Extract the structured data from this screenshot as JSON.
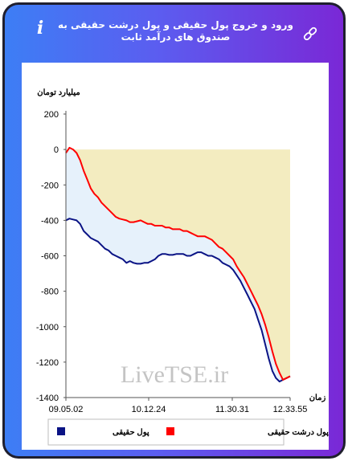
{
  "header": {
    "title": "ورود و خروج پول حقیقی و پول درشت حقیقی به صندوق های درآمد ثابت",
    "info_icon": "info-icon",
    "link_icon": "link-icon"
  },
  "watermark": "LiveTSE.ir",
  "chart_data": {
    "type": "line",
    "title": "",
    "ylabel": "میلیارد تومان",
    "xlabel": "زمان",
    "ylim": [
      -1400,
      200
    ],
    "yticks": [
      200,
      0,
      -200,
      -400,
      -600,
      -800,
      -1000,
      -1200,
      -1400
    ],
    "xtick_labels": [
      "09.05.02",
      "10.12.24",
      "11.30.31",
      "12.33.55"
    ],
    "legend_position": "bottom",
    "grid": false,
    "series": [
      {
        "name": "پول حقیقی",
        "color": "#0a1385",
        "values": [
          -400,
          -390,
          -395,
          -400,
          -420,
          -460,
          -480,
          -500,
          -510,
          -520,
          -540,
          -560,
          -570,
          -590,
          -600,
          -610,
          -620,
          -640,
          -630,
          -640,
          -645,
          -645,
          -640,
          -640,
          -630,
          -620,
          -600,
          -590,
          -590,
          -595,
          -595,
          -590,
          -590,
          -590,
          -600,
          -600,
          -590,
          -580,
          -580,
          -590,
          -600,
          -600,
          -610,
          -620,
          -640,
          -650,
          -660,
          -680,
          -710,
          -740,
          -780,
          -820,
          -860,
          -900,
          -960,
          -1020,
          -1100,
          -1180,
          -1250,
          -1290,
          -1310,
          -1300,
          -1290,
          -1280
        ]
      },
      {
        "name": "پول درشت حقیقی",
        "color": "#ff0000",
        "values": [
          -20,
          10,
          0,
          -20,
          -60,
          -120,
          -170,
          -220,
          -250,
          -270,
          -300,
          -320,
          -340,
          -360,
          -380,
          -390,
          -395,
          -400,
          -410,
          -410,
          -405,
          -400,
          -410,
          -420,
          -420,
          -430,
          -430,
          -430,
          -440,
          -440,
          -450,
          -450,
          -450,
          -460,
          -460,
          -470,
          -480,
          -490,
          -490,
          -490,
          -500,
          -510,
          -530,
          -550,
          -560,
          -580,
          -600,
          -620,
          -660,
          -690,
          -720,
          -760,
          -800,
          -840,
          -880,
          -930,
          -990,
          -1060,
          -1140,
          -1210,
          -1260,
          -1300,
          -1290,
          -1280
        ]
      }
    ]
  }
}
